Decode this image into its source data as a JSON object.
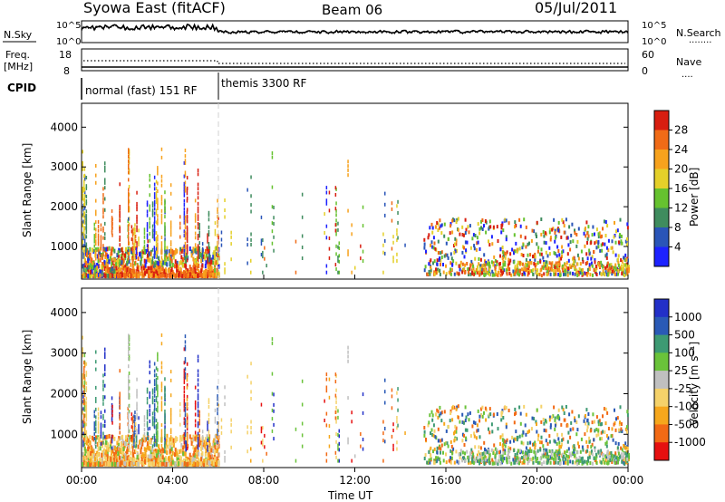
{
  "header": {
    "title": "Syowa East (fitACF)",
    "beam": "Beam 06",
    "date": "05/Jul/2011"
  },
  "panel_labels": {
    "nsky": "N.Sky",
    "nsearch": "N.Search",
    "nsearch_marker": "········",
    "freq_line1": "Freq.",
    "freq_line2": "[MHz]",
    "nave": "Nave",
    "nave_marker": "····",
    "cpid": "CPID",
    "noise_top_left": "10^5",
    "noise_bottom_left": "10^0",
    "noise_top_right": "10^5",
    "noise_bottom_right": "10^0",
    "freq_top": "18",
    "freq_bottom": "8",
    "nave_top": "60",
    "nave_bottom": "0"
  },
  "cpid_segments": [
    {
      "label": "normal (fast) 151 RF",
      "start_hour": 0,
      "end_hour": 6
    },
    {
      "label": "themis 3300 RF",
      "start_hour": 6,
      "end_hour": 24
    }
  ],
  "colors": {
    "power_scale": [
      "#1d22ff",
      "#2a55b8",
      "#3f8c5e",
      "#66c22f",
      "#e4d02a",
      "#f7a21d",
      "#f06b17",
      "#d81e10"
    ],
    "velocity_scale": [
      "#e61010",
      "#f26a15",
      "#f6a71c",
      "#f5d26a",
      "#c0c0c0",
      "#6ac33a",
      "#3d9a73",
      "#2a5ab6",
      "#2230c8"
    ]
  },
  "chart_data": [
    {
      "type": "heatmap",
      "panel": "power",
      "ylabel": "Slant Range [km]",
      "ylim": [
        180,
        4600
      ],
      "yticks": [
        "1000",
        "2000",
        "3000",
        "4000"
      ],
      "xlim": [
        0,
        24
      ],
      "colorbar": {
        "label": "Power [dB]",
        "range": [
          0,
          32
        ],
        "ticks": [
          "4",
          "8",
          "12",
          "16",
          "20",
          "24",
          "28"
        ]
      },
      "description_values": {
        "low_range_echo_hours": [
          0,
          6
        ],
        "low_range_echo_km": [
          200,
          600
        ],
        "mid_echo_hours": [
          16,
          24
        ],
        "mid_echo_km": [
          300,
          1500
        ]
      }
    },
    {
      "type": "heatmap",
      "panel": "velocity",
      "ylabel": "Slant Range [km]",
      "xlabel": "Time UT",
      "ylim": [
        180,
        4600
      ],
      "yticks": [
        "1000",
        "2000",
        "3000",
        "4000"
      ],
      "xlim": [
        0,
        24
      ],
      "xticks": [
        "00:00",
        "04:00",
        "08:00",
        "12:00",
        "16:00",
        "20:00",
        "00:00"
      ],
      "colorbar": {
        "label": "Velocity [m s⁻¹]",
        "ticks": [
          "1000",
          "500",
          "100",
          "25",
          "-25",
          "-100",
          "-500",
          "-1000"
        ]
      }
    }
  ]
}
